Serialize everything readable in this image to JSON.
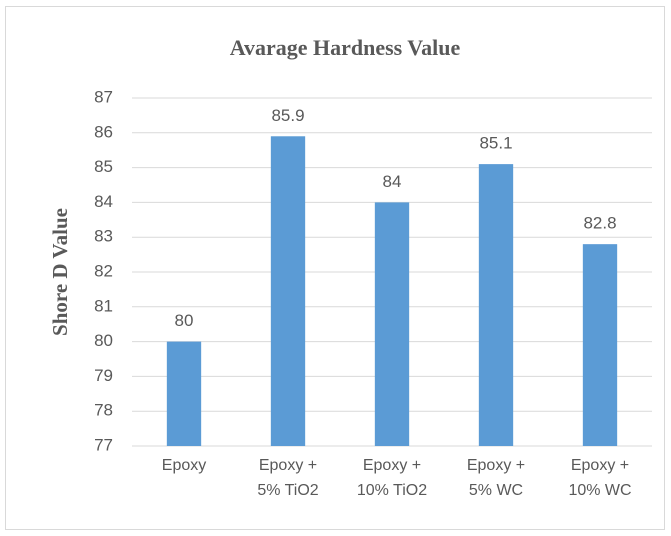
{
  "chart_data": {
    "type": "bar",
    "title": "Avarage Hardness Value",
    "y_label": "Shore D Value",
    "categories": [
      "Epoxy",
      "Epoxy +\n5% TiO2",
      "Epoxy +\n10% TiO2",
      "Epoxy +\n5% WC",
      "Epoxy +\n10% WC"
    ],
    "values": [
      80,
      85.9,
      84,
      85.1,
      82.8
    ],
    "color": "#5b9bd5",
    "ylim": [
      77,
      87
    ],
    "yticks": [
      77,
      78,
      79,
      80,
      81,
      82,
      83,
      84,
      85,
      86,
      87
    ],
    "grid": true
  }
}
